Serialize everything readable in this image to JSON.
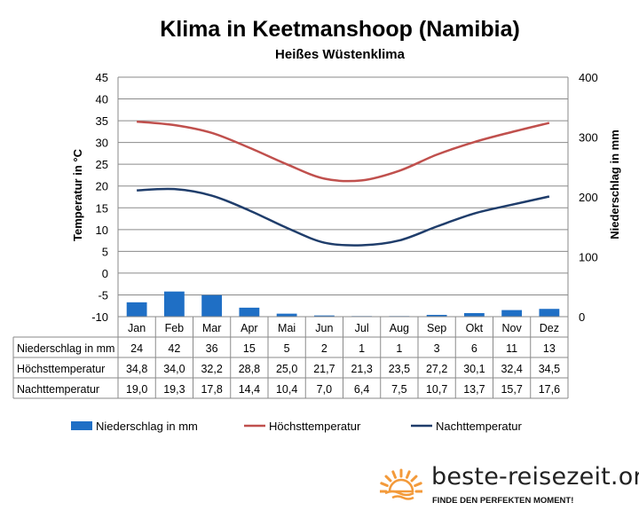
{
  "chart_data": {
    "type": "bar+line",
    "title": "Klima in Keetmanshoop (Namibia)",
    "subtitle": "Heißes Wüstenklima",
    "ylabel_left": "Temperatur in °C",
    "ylabel_right": "Niederschlag in mm",
    "ylim_left": [
      -10,
      45
    ],
    "ylim_right": [
      0,
      400
    ],
    "yticks_left": [
      45,
      40,
      35,
      30,
      25,
      20,
      15,
      10,
      5,
      0,
      -5,
      -10
    ],
    "yticks_right": [
      400,
      300,
      200,
      100,
      0
    ],
    "grid": "horizontal",
    "legend_position": "bottom",
    "categories": [
      "Jan",
      "Feb",
      "Mar",
      "Apr",
      "Mai",
      "Jun",
      "Jul",
      "Aug",
      "Sep",
      "Okt",
      "Nov",
      "Dez"
    ],
    "series": [
      {
        "name": "Niederschlag in mm",
        "type": "bar",
        "axis": "right",
        "color": "#1f6fc5",
        "values": [
          24,
          42,
          36,
          15,
          5,
          2,
          1,
          1,
          3,
          6,
          11,
          13
        ],
        "labels": [
          "24",
          "42",
          "36",
          "15",
          "5",
          "2",
          "1",
          "1",
          "3",
          "6",
          "11",
          "13"
        ]
      },
      {
        "name": "Höchsttemperatur",
        "type": "line",
        "axis": "left",
        "color": "#c0504d",
        "values": [
          34.8,
          34.0,
          32.2,
          28.8,
          25.0,
          21.7,
          21.3,
          23.5,
          27.2,
          30.1,
          32.4,
          34.5
        ],
        "labels": [
          "34,8",
          "34,0",
          "32,2",
          "28,8",
          "25,0",
          "21,7",
          "21,3",
          "23,5",
          "27,2",
          "30,1",
          "32,4",
          "34,5"
        ]
      },
      {
        "name": "Nachttemperatur",
        "type": "line",
        "axis": "left",
        "color": "#1f3d6b",
        "values": [
          19.0,
          19.3,
          17.8,
          14.4,
          10.4,
          7.0,
          6.4,
          7.5,
          10.7,
          13.7,
          15.7,
          17.6
        ],
        "labels": [
          "19,0",
          "19,3",
          "17,8",
          "14,4",
          "10,4",
          "7,0",
          "6,4",
          "7,5",
          "10,7",
          "13,7",
          "15,7",
          "17,6"
        ]
      }
    ]
  },
  "brand": {
    "name": "beste-reisezeit.org",
    "tagline": "FINDE DEN PERFEKTEN MOMENT!",
    "sun_color": "#f39a3a"
  }
}
